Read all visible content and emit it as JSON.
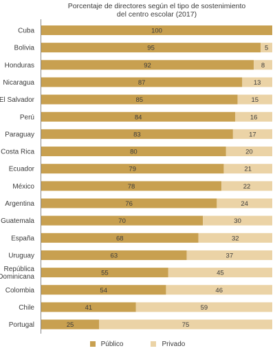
{
  "title_lines": [
    "Porcentaje de directores según el tipo de sostenimiento",
    "del centro escolar (2017)"
  ],
  "colors": {
    "publico": "#c8a050",
    "privado": "#ebd3a6",
    "axis": "#888888"
  },
  "legend": {
    "publico": "Público",
    "privado": "Privado"
  },
  "chart_data": {
    "type": "bar",
    "orientation": "horizontal",
    "stacked": true,
    "percent": true,
    "title": "Porcentaje de directores según el tipo de sostenimiento del centro escolar (2017)",
    "categories": [
      [
        "Cuba"
      ],
      [
        "Bolivia"
      ],
      [
        "Honduras"
      ],
      [
        "Nicaragua"
      ],
      [
        "El Salvador"
      ],
      [
        "Perú"
      ],
      [
        "Paraguay"
      ],
      [
        "Costa Rica"
      ],
      [
        "Ecuador"
      ],
      [
        "México"
      ],
      [
        "Argentina"
      ],
      [
        "Guatemala"
      ],
      [
        "España"
      ],
      [
        "Uruguay"
      ],
      [
        "República",
        "Dominicana"
      ],
      [
        "Colombia"
      ],
      [
        "Chile"
      ],
      [
        "Portugal"
      ]
    ],
    "series": [
      {
        "name": "Público",
        "values": [
          100,
          95,
          92,
          87,
          85,
          84,
          83,
          80,
          79,
          78,
          76,
          70,
          68,
          63,
          55,
          54,
          41,
          25
        ]
      },
      {
        "name": "Privado",
        "values": [
          null,
          5,
          8,
          13,
          15,
          16,
          17,
          20,
          21,
          22,
          24,
          30,
          32,
          37,
          45,
          46,
          59,
          75
        ]
      }
    ],
    "xlim": [
      0,
      100
    ],
    "legend_position": "bottom"
  }
}
